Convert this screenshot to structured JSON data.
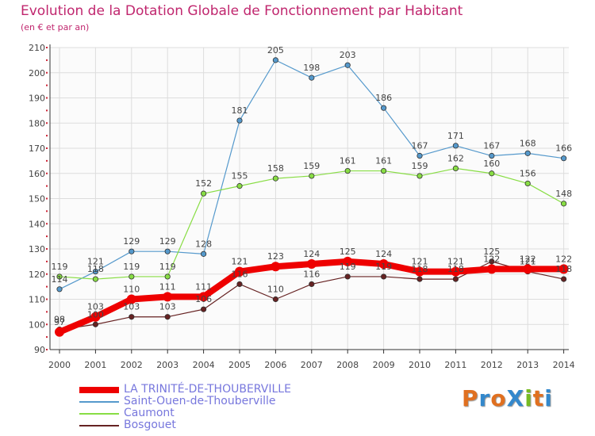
{
  "header": {
    "title": "Evolution de la Dotation Globale de Fonctionnement par Habitant",
    "subtitle": "(en € et par an)"
  },
  "logo": {
    "text": "ProXiti",
    "letters": [
      "P",
      "r",
      "o",
      "X",
      "i",
      "t",
      "i"
    ],
    "colors": [
      "#e07020",
      "#3388cc",
      "#e07020",
      "#3388cc",
      "#77bb22",
      "#e07020",
      "#3388cc"
    ]
  },
  "colors": {
    "background": "#fbfbfb",
    "grid": "#dddddd",
    "axis": "#333333",
    "tick": "#cc2233",
    "label": "#444444"
  },
  "chart_data": {
    "type": "line",
    "title": "Evolution de la Dotation Globale de Fonctionnement par Habitant",
    "subtitle": "(en € et par an)",
    "xlabel": "",
    "ylabel": "",
    "ylim": [
      90,
      210
    ],
    "yticks": [
      90,
      100,
      110,
      120,
      130,
      140,
      150,
      160,
      170,
      180,
      190,
      200,
      210
    ],
    "x": [
      "2000",
      "2001",
      "2002",
      "2003",
      "2004",
      "2005",
      "2006",
      "2007",
      "2008",
      "2009",
      "2010",
      "2011",
      "2012",
      "2013",
      "2014"
    ],
    "grid": true,
    "legend_position": "bottom-left",
    "series": [
      {
        "name": "LA TRINITÉ-DE-THOUBERVILLE",
        "color": "#ee0000",
        "width": 8,
        "values": [
          97,
          103,
          110,
          111,
          111,
          121,
          123,
          124,
          125,
          124,
          121,
          121,
          122,
          122,
          122
        ]
      },
      {
        "name": "Saint-Ouen-de-Thouberville",
        "color": "#5599cc",
        "width": 1.2,
        "values": [
          114,
          121,
          129,
          129,
          128,
          181,
          205,
          198,
          203,
          186,
          167,
          171,
          167,
          168,
          166
        ]
      },
      {
        "name": "Caumont",
        "color": "#88dd44",
        "width": 1.2,
        "values": [
          119,
          118,
          119,
          119,
          152,
          155,
          158,
          159,
          161,
          161,
          159,
          162,
          160,
          156,
          148
        ]
      },
      {
        "name": "Bosgouet",
        "color": "#662222",
        "width": 1.2,
        "values": [
          98,
          100,
          103,
          103,
          106,
          116,
          110,
          116,
          119,
          119,
          118,
          118,
          125,
          121,
          118
        ]
      }
    ]
  }
}
